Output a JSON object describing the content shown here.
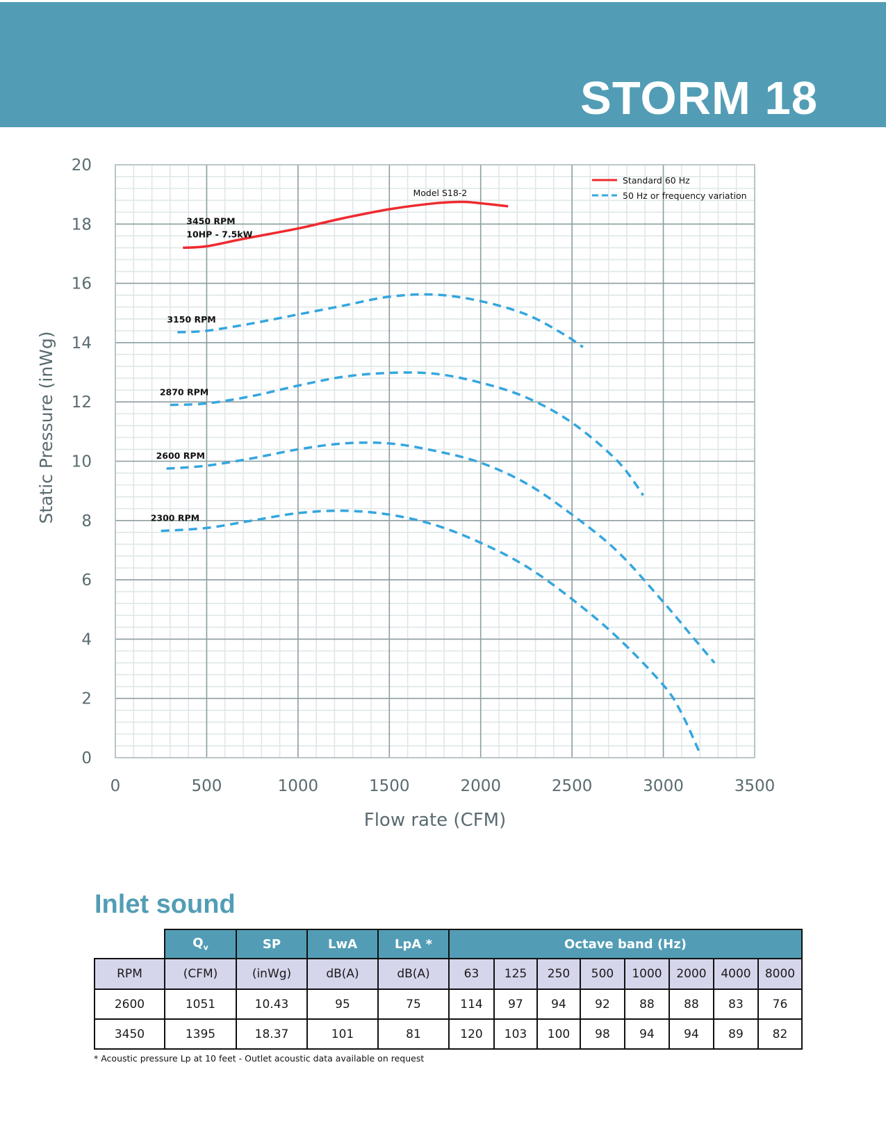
{
  "header": {
    "title": "STORM 18"
  },
  "colors": {
    "brand": "#529db5",
    "standard_curve": "#ee2a2f",
    "variation_curve": "#34a6de",
    "major_grid": "#8e9ea1",
    "minor_grid": "#dfe7e8",
    "table_subheader": "#d5d5ec"
  },
  "chart_data": {
    "type": "line",
    "title": "",
    "xlabel": "Flow rate (CFM)",
    "ylabel": "Static Pressure (inWg)",
    "xlim": [
      0,
      3500
    ],
    "ylim": [
      0,
      20
    ],
    "xticks": [
      "0",
      "500",
      "1000",
      "1500",
      "2000",
      "2500",
      "3000",
      "3500"
    ],
    "yticks": [
      "0",
      "2",
      "4",
      "6",
      "8",
      "10",
      "12",
      "14",
      "16",
      "18",
      "20"
    ],
    "grid": true,
    "legend_position": "top-right",
    "legend": [
      {
        "label": "Standard 60 Hz",
        "style": "solid",
        "color": "#ee2a2f"
      },
      {
        "label": "50 Hz or frequency variation",
        "style": "dashed",
        "color": "#34a6de"
      }
    ],
    "annotations": [
      "Model S18-2"
    ],
    "series": [
      {
        "name": "3450 RPM",
        "sublabel": "10HP - 7.5kW",
        "style": "solid",
        "color": "#ee2a2f",
        "x": [
          370,
          500,
          700,
          1000,
          1250,
          1500,
          1750,
          1900,
          2000,
          2150
        ],
        "y": [
          17.2,
          17.25,
          17.5,
          17.85,
          18.2,
          18.5,
          18.7,
          18.75,
          18.7,
          18.6
        ]
      },
      {
        "name": "3150 RPM",
        "style": "dashed",
        "color": "#34a6de",
        "x": [
          340,
          500,
          750,
          1000,
          1250,
          1500,
          1750,
          2000,
          2250,
          2450,
          2560
        ],
        "y": [
          14.35,
          14.4,
          14.65,
          14.95,
          15.25,
          15.55,
          15.62,
          15.4,
          14.95,
          14.3,
          13.85
        ]
      },
      {
        "name": "2870 RPM",
        "style": "dashed",
        "color": "#34a6de",
        "x": [
          300,
          500,
          750,
          1000,
          1250,
          1500,
          1750,
          2000,
          2250,
          2500,
          2750,
          2890
        ],
        "y": [
          11.9,
          11.95,
          12.2,
          12.55,
          12.85,
          12.98,
          12.95,
          12.65,
          12.15,
          11.3,
          10.0,
          8.85
        ]
      },
      {
        "name": "2600 RPM",
        "style": "dashed",
        "color": "#34a6de",
        "x": [
          280,
          500,
          750,
          1000,
          1250,
          1500,
          1750,
          2000,
          2250,
          2500,
          2750,
          3000,
          3150,
          3280
        ],
        "y": [
          9.75,
          9.85,
          10.1,
          10.4,
          10.6,
          10.6,
          10.35,
          9.95,
          9.25,
          8.2,
          6.95,
          5.25,
          4.15,
          3.2
        ]
      },
      {
        "name": "2300 RPM",
        "style": "dashed",
        "color": "#34a6de",
        "x": [
          250,
          500,
          750,
          1000,
          1250,
          1500,
          1750,
          2000,
          2250,
          2500,
          2750,
          3000,
          3100,
          3200
        ],
        "y": [
          7.65,
          7.75,
          8.0,
          8.25,
          8.33,
          8.2,
          7.85,
          7.25,
          6.45,
          5.35,
          4.05,
          2.45,
          1.5,
          0.15
        ]
      }
    ]
  },
  "inlet_sound": {
    "title": "Inlet sound",
    "header": {
      "qv": "Q",
      "qv_sub": "v",
      "sp": "SP",
      "lwa": "LwA",
      "lpa": "LpA *",
      "octave": "Octave band (Hz)"
    },
    "units": [
      "RPM",
      "(CFM)",
      "(inWg)",
      "dB(A)",
      "dB(A)",
      "63",
      "125",
      "250",
      "500",
      "1000",
      "2000",
      "4000",
      "8000"
    ],
    "rows": [
      [
        "2600",
        "1051",
        "10.43",
        "95",
        "75",
        "114",
        "97",
        "94",
        "92",
        "88",
        "88",
        "83",
        "76"
      ],
      [
        "3450",
        "1395",
        "18.37",
        "101",
        "81",
        "120",
        "103",
        "100",
        "98",
        "94",
        "94",
        "89",
        "82"
      ]
    ],
    "footnote": "* Acoustic pressure Lp at 10 feet - Outlet acoustic data available on request"
  }
}
